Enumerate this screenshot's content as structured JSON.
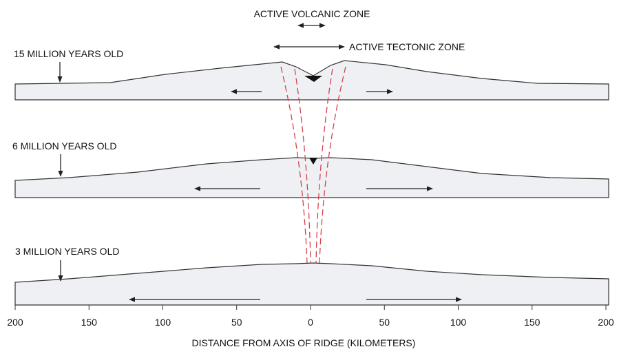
{
  "labels": {
    "volcanic": "ACTIVE VOLCANIC ZONE",
    "tectonic": "ACTIVE TECTONIC ZONE"
  },
  "profiles": [
    {
      "label": "15 MILLION YEARS OLD"
    },
    {
      "label": "6 MILLION YEARS OLD"
    },
    {
      "label": "3 MILLION YEARS OLD"
    }
  ],
  "axis": {
    "title": "DISTANCE FROM AXIS OF RIDGE (KILOMETERS)",
    "ticks": [
      200,
      150,
      100,
      50,
      0,
      50,
      100,
      150,
      200
    ]
  }
}
